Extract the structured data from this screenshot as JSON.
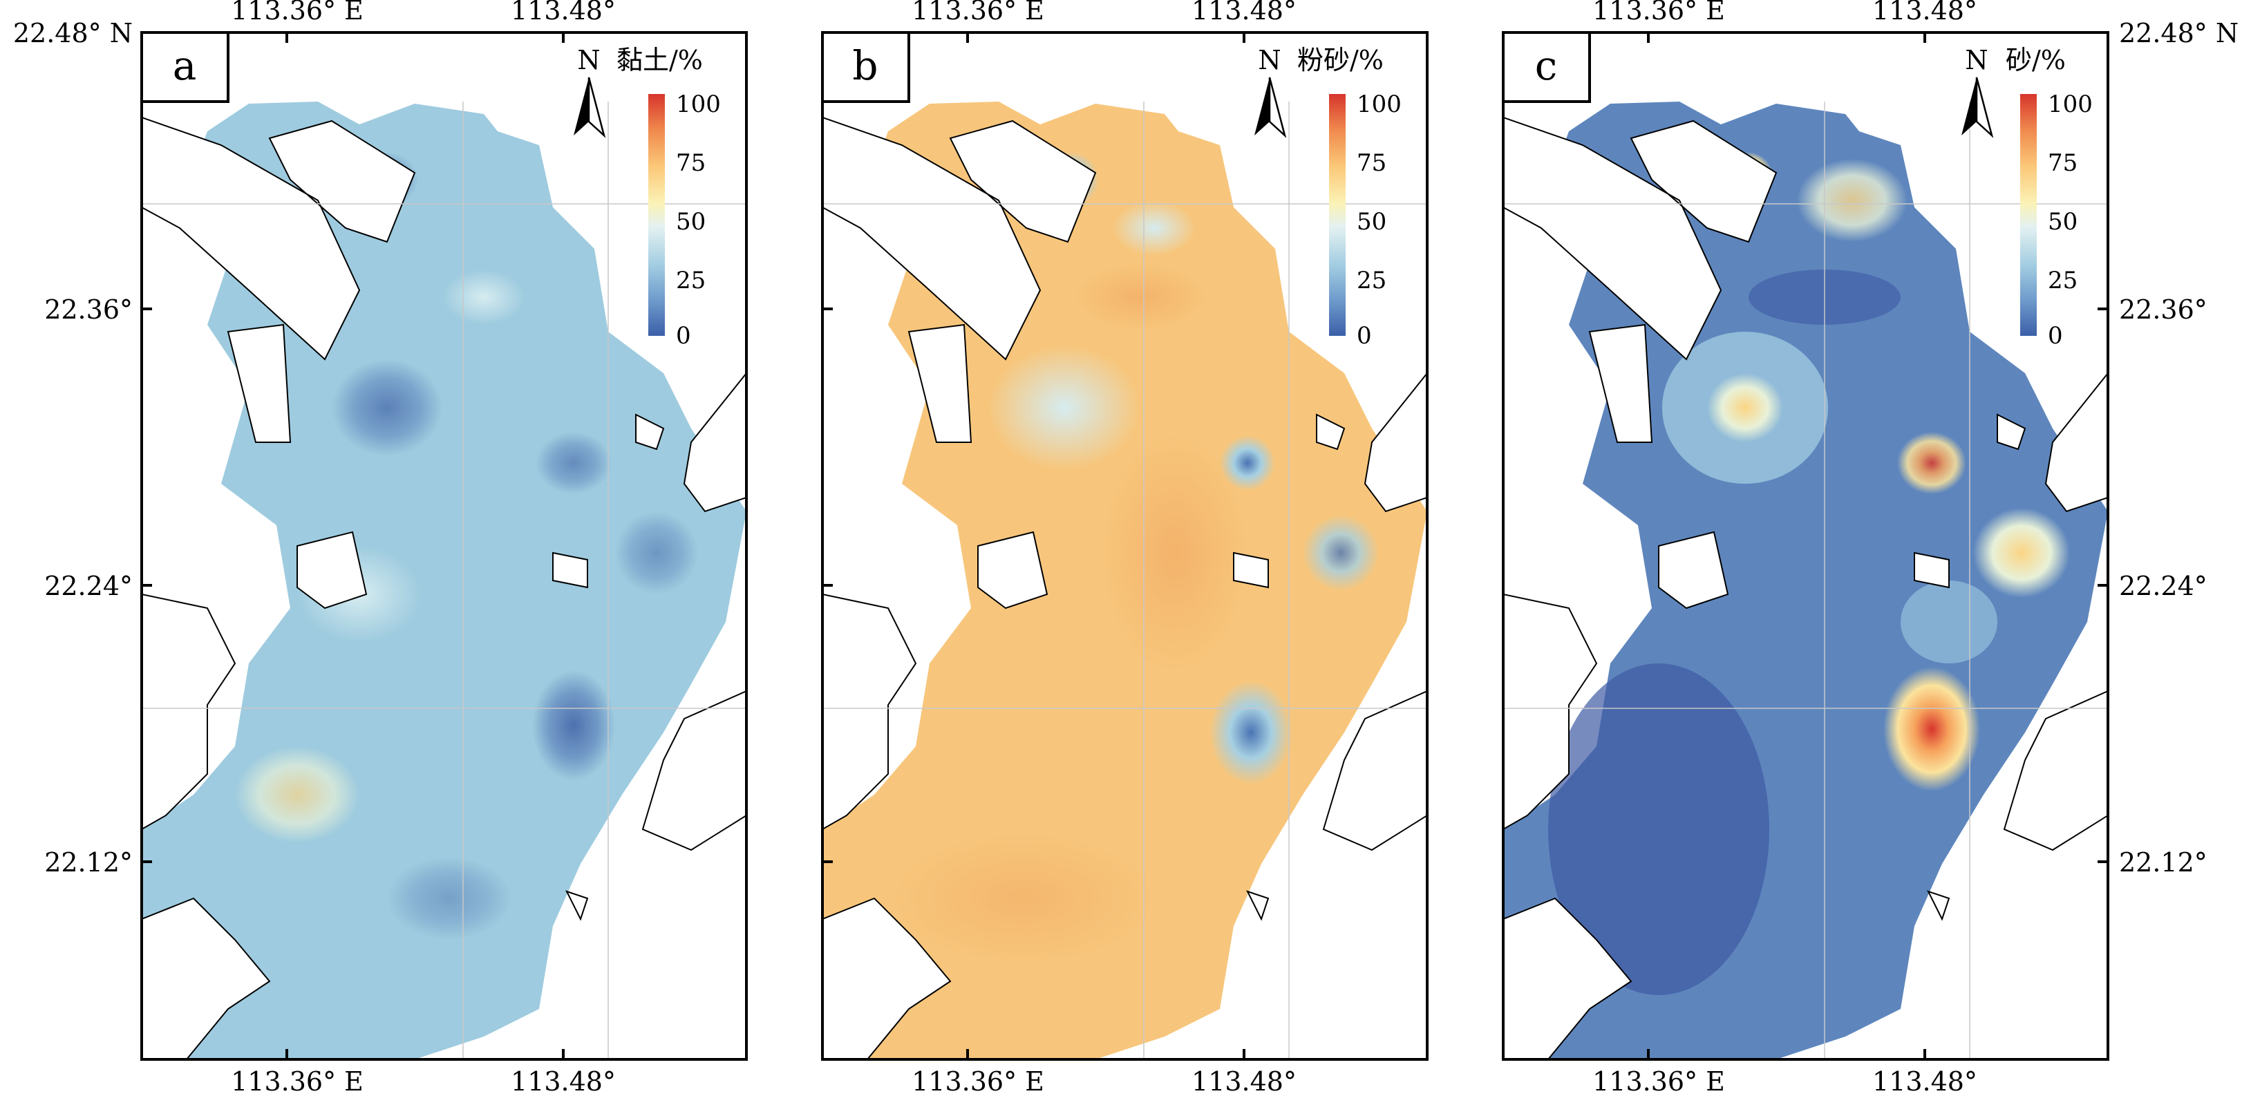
{
  "latitude_labels": [
    "22.48° N",
    "22.36°",
    "22.24°",
    "22.12°"
  ],
  "longitude_labels": [
    "113.36° E",
    "113.48°"
  ],
  "colorbar": {
    "ticks": [
      "100",
      "75",
      "50",
      "25",
      "0"
    ],
    "stops": [
      "#d73027",
      "#f46d43",
      "#fdae61",
      "#fee090",
      "#ffffbf",
      "#e0f3f8",
      "#abd9e9",
      "#74add1",
      "#4575b4"
    ]
  },
  "colors": {
    "land": "#ffffff",
    "coast": "#000000",
    "grid": "#c8c8c8"
  },
  "panels": [
    {
      "letter": "a",
      "north": "N",
      "title": "黏土/%",
      "base_color": "#9ecbdf"
    },
    {
      "letter": "b",
      "north": "N",
      "title": "粉砂/%",
      "base_color": "#f7c67c"
    },
    {
      "letter": "c",
      "north": "N",
      "title": "砂/%",
      "base_color": "#5e86bd"
    }
  ]
}
